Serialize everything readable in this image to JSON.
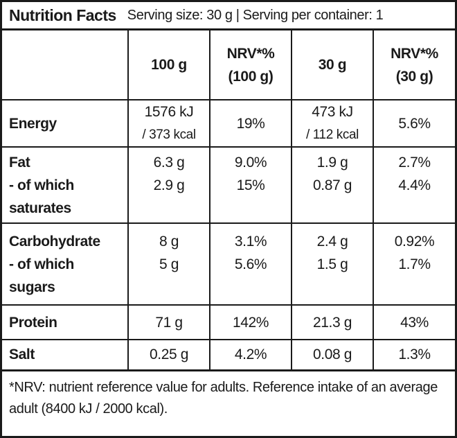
{
  "header": {
    "title": "Nutrition Facts",
    "serving": "Serving size: 30 g | Serving per container: 1"
  },
  "columns": [
    "100 g",
    "NRV*% (100 g)",
    "30 g",
    "NRV*% (30 g)"
  ],
  "column_lines": [
    [
      "100 g"
    ],
    [
      "NRV*%",
      "(100 g)"
    ],
    [
      "30 g"
    ],
    [
      "NRV*%",
      "(30 g)"
    ]
  ],
  "rows": [
    {
      "label": [
        "Energy"
      ],
      "cells": [
        [
          "1576 kJ",
          "/ 373 kcal"
        ],
        [
          "19%"
        ],
        [
          "473 kJ",
          "/ 112 kcal"
        ],
        [
          "5.6%"
        ]
      ]
    },
    {
      "label": [
        "Fat",
        "- of which",
        "saturates"
      ],
      "cells": [
        [
          "6.3 g",
          "2.9 g"
        ],
        [
          "9.0%",
          "15%"
        ],
        [
          "1.9 g",
          "0.87 g"
        ],
        [
          "2.7%",
          "4.4%"
        ]
      ]
    },
    {
      "label": [
        "Carbohydrate",
        "- of which",
        "sugars"
      ],
      "cells": [
        [
          "8 g",
          "5 g"
        ],
        [
          "3.1%",
          "5.6%"
        ],
        [
          "2.4 g",
          "1.5 g"
        ],
        [
          "0.92%",
          "1.7%"
        ]
      ]
    },
    {
      "label": [
        "Protein"
      ],
      "cells": [
        [
          "71 g"
        ],
        [
          "142%"
        ],
        [
          "21.3 g"
        ],
        [
          "43%"
        ]
      ]
    },
    {
      "label": [
        "Salt"
      ],
      "cells": [
        [
          "0.25 g"
        ],
        [
          "4.2%"
        ],
        [
          "0.08 g"
        ],
        [
          "1.3%"
        ]
      ]
    }
  ],
  "footnote": "*NRV: nutrient reference value for adults. Reference intake of an average adult (8400 kJ / 2000 kcal)."
}
